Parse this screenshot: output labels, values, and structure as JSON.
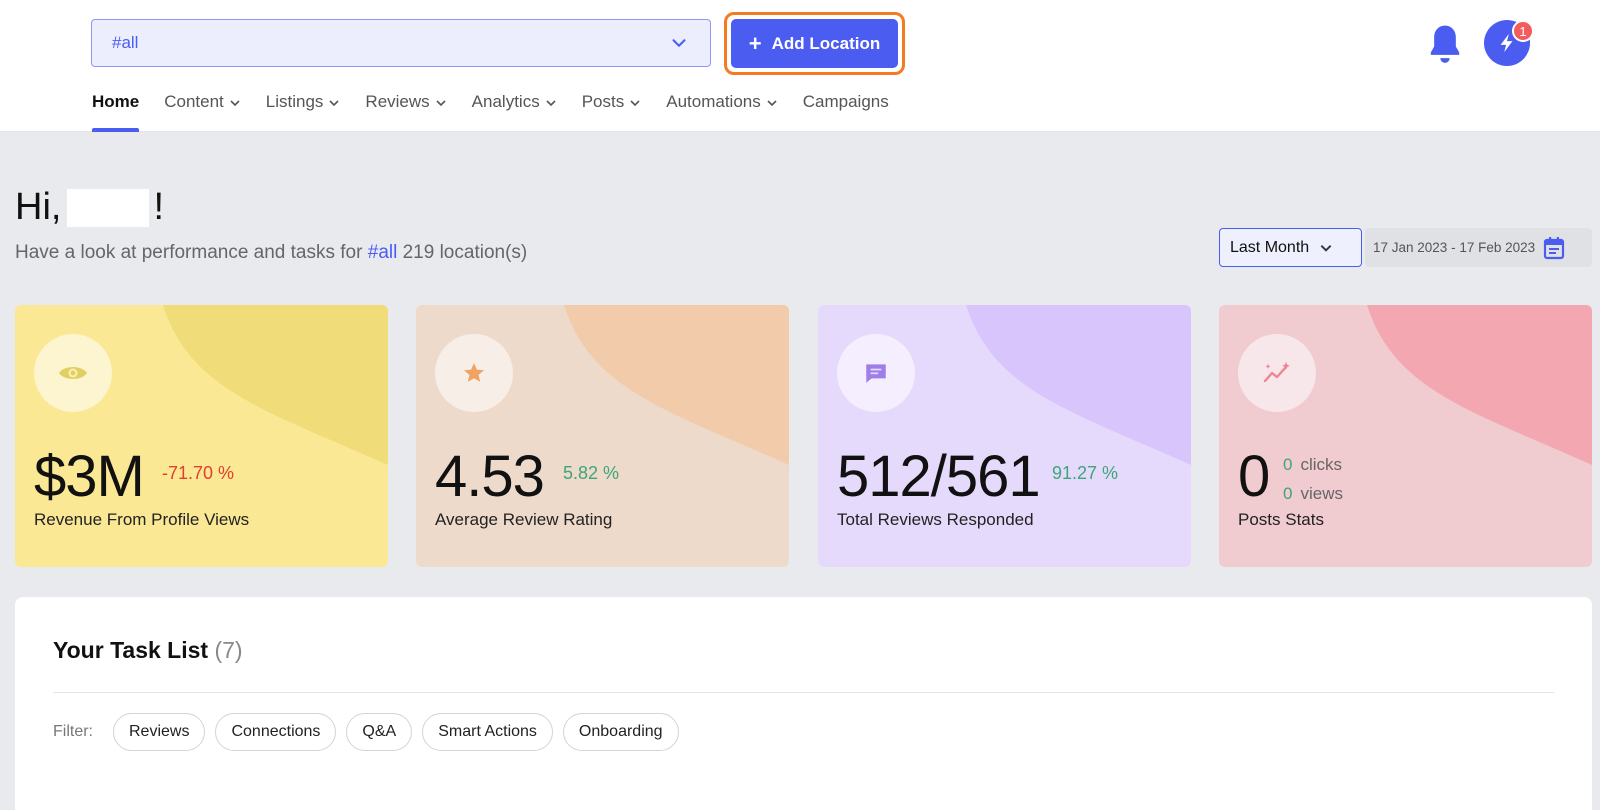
{
  "header": {
    "location_select": {
      "value": "#all"
    },
    "add_location_label": "Add Location",
    "notifications_badge": "1"
  },
  "nav": {
    "items": [
      {
        "label": "Home",
        "active": true,
        "dropdown": false
      },
      {
        "label": "Content",
        "dropdown": true
      },
      {
        "label": "Listings",
        "dropdown": true
      },
      {
        "label": "Reviews",
        "dropdown": true
      },
      {
        "label": "Analytics",
        "dropdown": true
      },
      {
        "label": "Posts",
        "dropdown": true
      },
      {
        "label": "Automations",
        "dropdown": true
      },
      {
        "label": "Campaigns",
        "dropdown": false
      }
    ]
  },
  "greeting": {
    "prefix": "Hi,",
    "suffix": "!",
    "sub_before": "Have a look at performance and tasks for",
    "sub_tag": "#all",
    "sub_after": "219 location(s)"
  },
  "period": {
    "selected": "Last Month",
    "date_range": "17 Jan 2023 - 17 Feb 2023"
  },
  "cards": [
    {
      "icon": "eye-icon",
      "value": "$3M",
      "change": "-71.70 %",
      "label": "Revenue From Profile Views",
      "bg": "#fae894",
      "blob": "#f0dc78",
      "icon_color": "#e2cf63"
    },
    {
      "icon": "star-icon",
      "value": "4.53",
      "change": "5.82 %",
      "label": "Average Review Rating",
      "bg": "#eddacb",
      "blob": "#f2ccaa",
      "icon_color": "#f0a463"
    },
    {
      "icon": "chat-icon",
      "value": "512/561",
      "change": "91.27 %",
      "label": "Total Reviews Responded",
      "bg": "#e6dafc",
      "blob": "#d8c5fb",
      "icon_color": "#a07ee8"
    },
    {
      "icon": "sparkle-chart-icon",
      "value": "0",
      "clicks_value": "0",
      "clicks_label": "clicks",
      "views_value": "0",
      "views_label": "views",
      "label": "Posts Stats",
      "bg": "#f0cbd0",
      "blob": "#f3a8b1",
      "icon_color": "#ef8593"
    }
  ],
  "tasks": {
    "title": "Your Task List",
    "count": "(7)",
    "filter_label": "Filter:",
    "filters": [
      "Reviews",
      "Connections",
      "Q&A",
      "Smart Actions",
      "Onboarding"
    ]
  }
}
